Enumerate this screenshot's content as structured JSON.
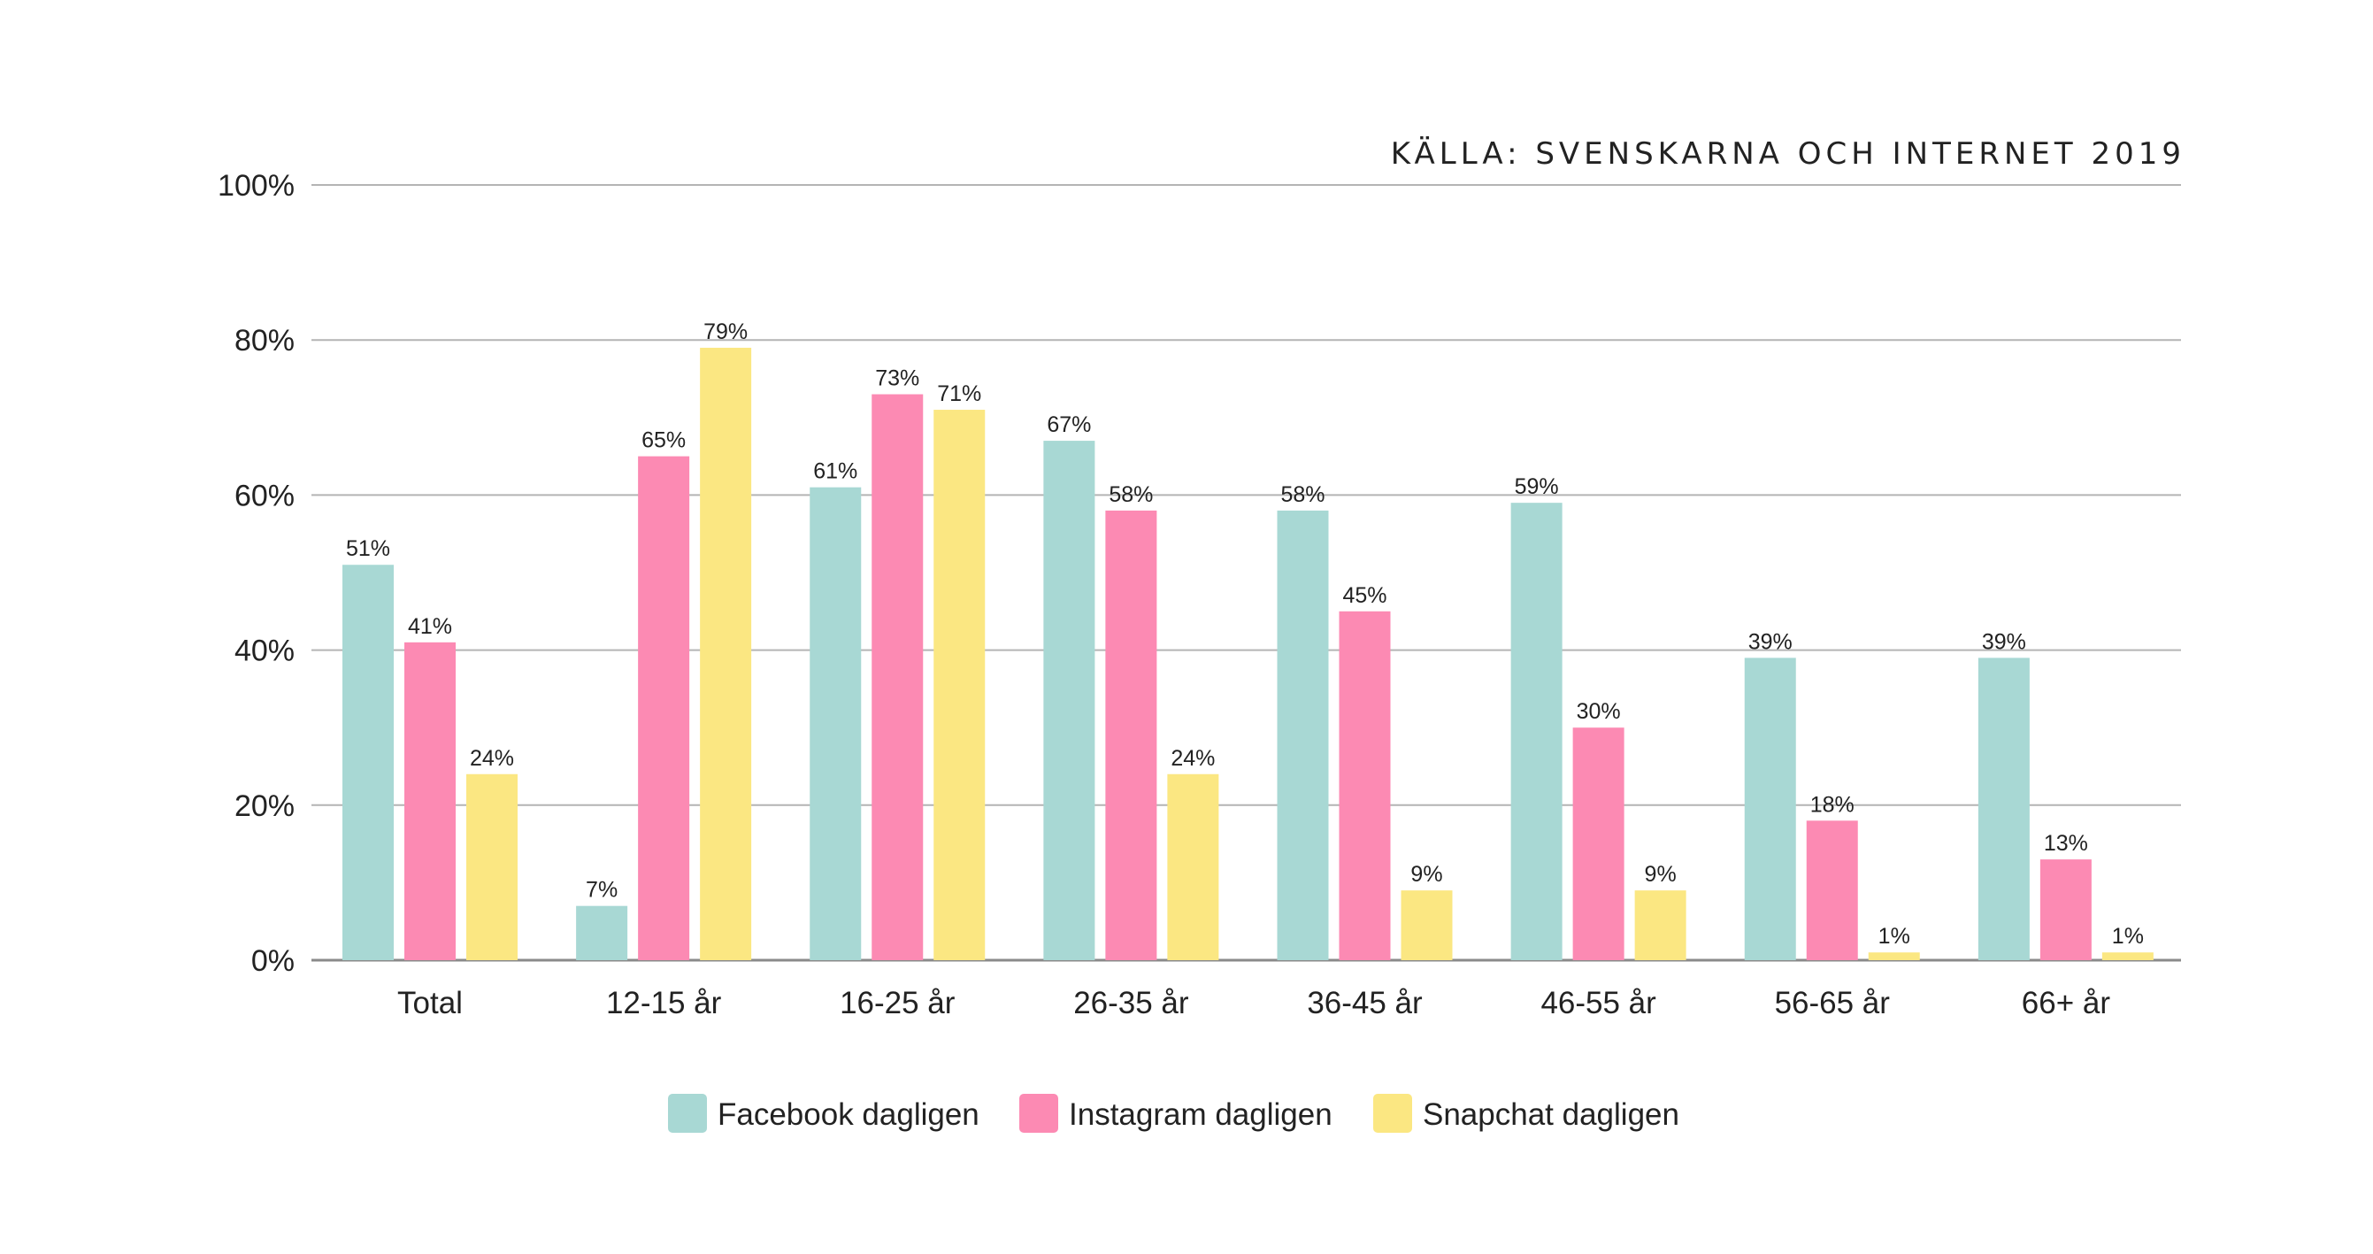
{
  "source": "KÄLLA: SVENSKARNA OCH INTERNET 2019",
  "chart_data": {
    "type": "bar",
    "categories": [
      "Total",
      "12-15 år",
      "16-25 år",
      "26-35 år",
      "36-45 år",
      "46-55 år",
      "56-65 år",
      "66+ år"
    ],
    "series": [
      {
        "name": "Facebook dagligen",
        "color": "#a8d8d4",
        "values": [
          51,
          7,
          61,
          67,
          58,
          59,
          39,
          39
        ],
        "labels": [
          "51%",
          "7%",
          "61%",
          "67%",
          "58%",
          "59%",
          "39%",
          "39%"
        ]
      },
      {
        "name": "Instagram dagligen",
        "color": "#fc8ab3",
        "values": [
          41,
          65,
          73,
          58,
          45,
          30,
          18,
          13
        ],
        "labels": [
          "41%",
          "65%",
          "73%",
          "58%",
          "45%",
          "30%",
          "18%",
          "13%"
        ]
      },
      {
        "name": "Snapchat dagligen",
        "color": "#fbe782",
        "values": [
          24,
          79,
          71,
          24,
          9,
          9,
          1,
          1
        ],
        "labels": [
          "24%",
          "79%",
          "71%",
          "24%",
          "9%",
          "9%",
          "1%",
          "1%"
        ]
      }
    ],
    "ylim": [
      0,
      100
    ],
    "yticks": [
      "0%",
      "20%",
      "40%",
      "60%",
      "80%",
      "100%"
    ],
    "grid": true,
    "legend_position": "bottom-center"
  }
}
